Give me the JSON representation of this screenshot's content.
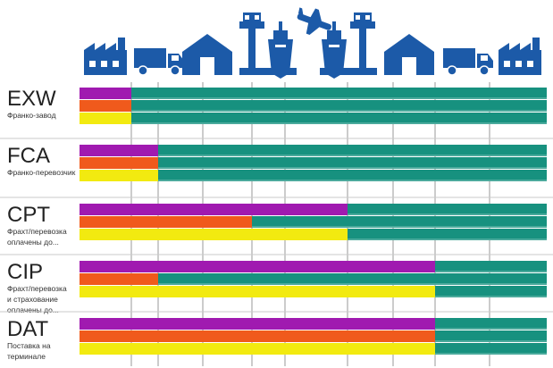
{
  "colors": {
    "blue": "#1c5aa8",
    "purple": "#a01ab0",
    "orange": "#f05a1c",
    "yellow": "#f2ea10",
    "teal": "#17917f",
    "divider": "#c9c9c9",
    "gridline": "#9a9a9a"
  },
  "icons": [
    "factory-icon",
    "truck-icon",
    "warehouse-icon",
    "port-terminal-icon",
    "ship-icon",
    "airplane-icon",
    "ship-icon",
    "port-terminal-icon",
    "warehouse-icon",
    "truck-icon",
    "factory-icon"
  ],
  "bar_legend_note": "top bar purple, middle orange, bottom yellow, remainder teal",
  "terms": [
    {
      "code": "EXW",
      "sub": [
        "Франко-завод"
      ],
      "purple": 1,
      "orange": 1,
      "yellow": 1
    },
    {
      "code": "FCA",
      "sub": [
        "Франко-перевозчик"
      ],
      "purple": 2,
      "orange": 2,
      "yellow": 2
    },
    {
      "code": "CPT",
      "sub": [
        "Фрахт/перевозка",
        "оплачены до..."
      ],
      "purple": 6,
      "orange": 4,
      "yellow": 6
    },
    {
      "code": "CIP",
      "sub": [
        "Фрахт/перевозка",
        "и страхование",
        "оплачены до..."
      ],
      "purple": 8,
      "orange": 2,
      "yellow": 8
    },
    {
      "code": "DAT",
      "sub": [
        "Поставка на",
        "терминале"
      ],
      "purple": 8,
      "orange": 8,
      "yellow": 8
    }
  ]
}
